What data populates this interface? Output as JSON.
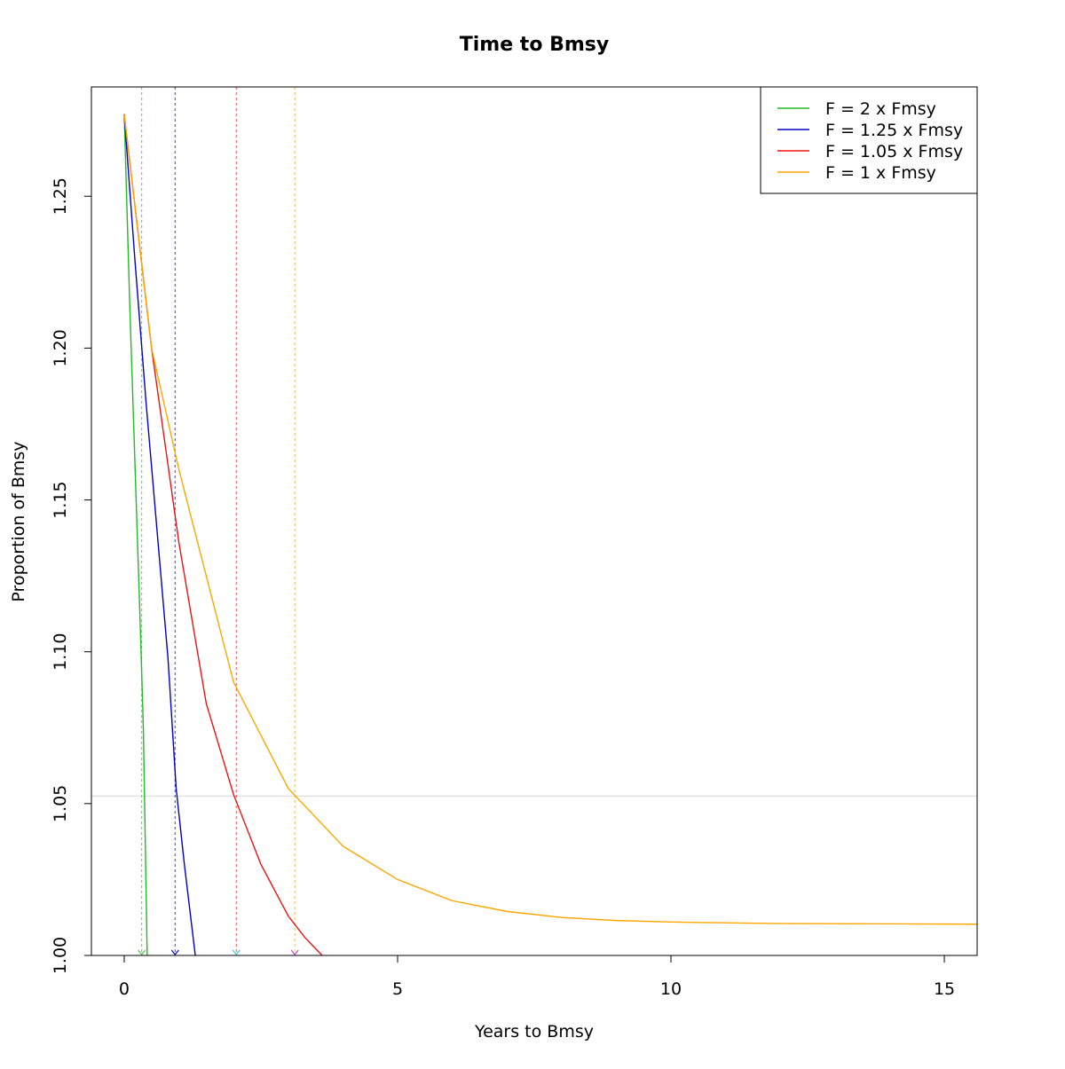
{
  "chart_data": {
    "type": "line",
    "title": "Time to Bmsy",
    "xlabel": "Years to Bmsy",
    "ylabel": "Proportion of Bmsy",
    "xlim": [
      -0.6,
      15.6
    ],
    "ylim": [
      1.0,
      1.286
    ],
    "xticks": [
      0,
      5,
      10,
      15
    ],
    "yticks": [
      1.0,
      1.05,
      1.1,
      1.15,
      1.2,
      1.25
    ],
    "xtick_labels": [
      "0",
      "5",
      "10",
      "15"
    ],
    "ytick_labels": [
      "1.00",
      "1.05",
      "1.10",
      "1.15",
      "1.20",
      "1.25"
    ],
    "grid": false,
    "legend_position": "top-right",
    "reference_line_y": 1.0525,
    "reference_line_color": "#d9d9d9",
    "start_value": 1.277,
    "series": [
      {
        "name": "F = 2 x Fmsy",
        "color": "#22bb22",
        "points": [
          [
            0,
            1.277
          ],
          [
            0.1,
            1.215
          ],
          [
            0.2,
            1.16
          ],
          [
            0.3,
            1.105
          ],
          [
            0.35,
            1.075
          ],
          [
            0.42,
            1.0
          ]
        ],
        "time_to_target": 0.32
      },
      {
        "name": "F = 1.25 x Fmsy",
        "color": "#0000cc",
        "points": [
          [
            0,
            1.277
          ],
          [
            0.2,
            1.228
          ],
          [
            0.4,
            1.182
          ],
          [
            0.6,
            1.14
          ],
          [
            0.8,
            1.098
          ],
          [
            0.95,
            1.055
          ],
          [
            1.1,
            1.03
          ],
          [
            1.3,
            1.0
          ]
        ],
        "time_to_target": 0.93
      },
      {
        "name": "F = 1.05 x Fmsy",
        "color": "#ee1111",
        "points": [
          [
            0,
            1.277
          ],
          [
            0.5,
            1.2
          ],
          [
            1.0,
            1.136
          ],
          [
            1.5,
            1.083
          ],
          [
            2.0,
            1.053
          ],
          [
            2.5,
            1.03
          ],
          [
            3.0,
            1.013
          ],
          [
            3.3,
            1.006
          ],
          [
            3.62,
            1.0
          ]
        ],
        "time_to_target": 2.05
      },
      {
        "name": "F = 1 x Fmsy",
        "color": "#ffa500",
        "points": [
          [
            0,
            1.277
          ],
          [
            0.5,
            1.2
          ],
          [
            1.0,
            1.16
          ],
          [
            2.0,
            1.09
          ],
          [
            3.0,
            1.055
          ],
          [
            4.0,
            1.036
          ],
          [
            5.0,
            1.025
          ],
          [
            6.0,
            1.018
          ],
          [
            7.0,
            1.0145
          ],
          [
            8.0,
            1.0125
          ],
          [
            9.0,
            1.0115
          ],
          [
            10.0,
            1.011
          ],
          [
            12.0,
            1.0105
          ],
          [
            15.6,
            1.0103
          ]
        ],
        "time_to_target": 3.12
      }
    ],
    "marker_colors": [
      "#44cc44",
      "#0000cc",
      "#33ccdd",
      "#cc44cc"
    ]
  }
}
